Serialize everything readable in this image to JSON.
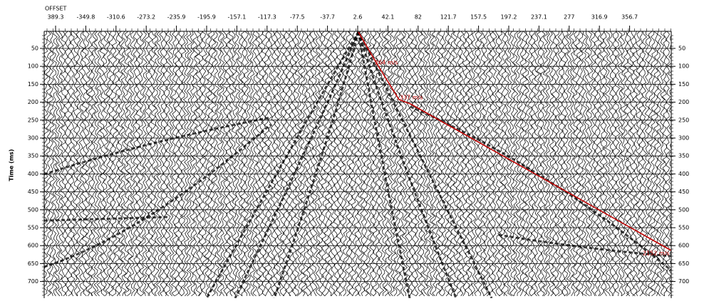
{
  "header": {
    "axis_title": "OFFSET",
    "offsets": [
      "389.3",
      "-349.8",
      "-310.6",
      "-273.2",
      "-235.9",
      "-195.9",
      "-157.1",
      "-117.3",
      "-77.5",
      "-37.7",
      "2.6",
      "42.1",
      "82",
      "121.7",
      "157.5",
      "197.2",
      "237.1",
      "277",
      "316.9",
      "356.7"
    ]
  },
  "time_axis": {
    "title": "Time (ms)",
    "labels": [
      "50",
      "100",
      "150",
      "200",
      "250",
      "300",
      "350",
      "400",
      "450",
      "500",
      "550",
      "600",
      "650",
      "700"
    ]
  },
  "picks": [
    {
      "label": "264 m/s"
    },
    {
      "label": "337 m/s"
    },
    {
      "label": "2152 m/s"
    }
  ]
}
